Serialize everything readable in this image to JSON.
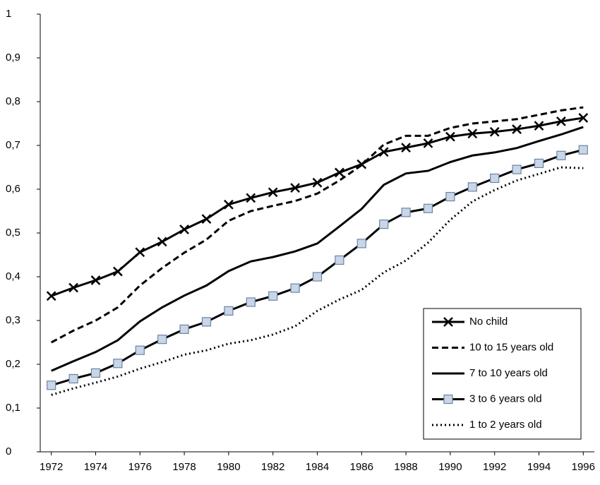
{
  "chart_data": {
    "type": "line",
    "x": [
      1972,
      1973,
      1974,
      1975,
      1976,
      1977,
      1978,
      1979,
      1980,
      1981,
      1982,
      1983,
      1984,
      1985,
      1986,
      1987,
      1988,
      1989,
      1990,
      1991,
      1992,
      1993,
      1994,
      1995,
      1996
    ],
    "xlim": [
      1971.5,
      1996.5
    ],
    "xticks": [
      1972,
      1974,
      1976,
      1978,
      1980,
      1982,
      1984,
      1986,
      1988,
      1990,
      1992,
      1994,
      1996
    ],
    "ylim": [
      0,
      1
    ],
    "yticks": [
      0,
      {
        "value": 0.1,
        "label": "0,1"
      },
      {
        "value": 0.2,
        "label": "0,2"
      },
      {
        "value": 0.3,
        "label": "0,3"
      },
      {
        "value": 0.4,
        "label": "0,4"
      },
      {
        "value": 0.5,
        "label": "0,5"
      },
      {
        "value": 0.6,
        "label": "0,6"
      },
      {
        "value": 0.7,
        "label": "0,7"
      },
      {
        "value": 0.8,
        "label": "0,8"
      },
      {
        "value": 0.9,
        "label": "0,9"
      },
      1
    ],
    "legend": "lower-right",
    "series": [
      {
        "name": "No child",
        "color": "#000000",
        "dash": "solid",
        "marker": "x",
        "values": [
          0.356,
          0.375,
          0.392,
          0.412,
          0.456,
          0.48,
          0.508,
          0.532,
          0.565,
          0.58,
          0.593,
          0.603,
          0.615,
          0.638,
          0.657,
          0.685,
          0.695,
          0.705,
          0.72,
          0.727,
          0.731,
          0.737,
          0.745,
          0.755,
          0.763
        ]
      },
      {
        "name": "10 to 15 years old",
        "color": "#000000",
        "dash": "dashed",
        "marker": "none",
        "values": [
          0.25,
          0.277,
          0.3,
          0.33,
          0.38,
          0.42,
          0.455,
          0.485,
          0.528,
          0.55,
          0.562,
          0.573,
          0.59,
          0.62,
          0.655,
          0.702,
          0.722,
          0.722,
          0.74,
          0.75,
          0.755,
          0.76,
          0.77,
          0.78,
          0.787
        ]
      },
      {
        "name": "7 to 10 years old",
        "color": "#000000",
        "dash": "solid",
        "marker": "none",
        "values": [
          0.185,
          0.207,
          0.228,
          0.255,
          0.298,
          0.33,
          0.357,
          0.38,
          0.413,
          0.435,
          0.445,
          0.458,
          0.476,
          0.515,
          0.555,
          0.61,
          0.636,
          0.642,
          0.662,
          0.677,
          0.684,
          0.694,
          0.71,
          0.725,
          0.742
        ]
      },
      {
        "name": "3 to 6 years old",
        "color": "#000000",
        "dash": "solid",
        "marker": "square",
        "values": [
          0.152,
          0.167,
          0.18,
          0.202,
          0.232,
          0.257,
          0.28,
          0.297,
          0.322,
          0.342,
          0.356,
          0.374,
          0.4,
          0.438,
          0.476,
          0.52,
          0.547,
          0.556,
          0.583,
          0.605,
          0.625,
          0.645,
          0.659,
          0.677,
          0.69
        ]
      },
      {
        "name": "1 to 2 years old",
        "color": "#000000",
        "dash": "dotted",
        "marker": "none",
        "values": [
          0.13,
          0.145,
          0.158,
          0.172,
          0.19,
          0.205,
          0.222,
          0.232,
          0.247,
          0.255,
          0.268,
          0.287,
          0.322,
          0.348,
          0.37,
          0.41,
          0.437,
          0.478,
          0.53,
          0.572,
          0.598,
          0.62,
          0.635,
          0.65,
          0.648
        ]
      }
    ]
  }
}
